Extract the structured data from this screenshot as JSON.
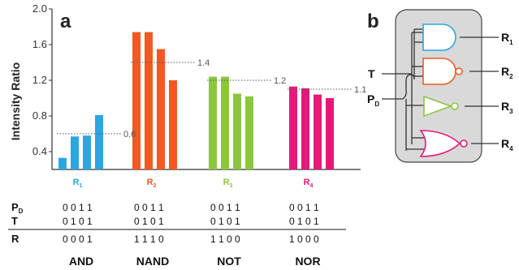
{
  "panel_a": {
    "letter": "a"
  },
  "panel_b": {
    "letter": "b"
  },
  "chart_data": {
    "type": "bar",
    "title": "",
    "xlabel": "",
    "ylabel": "Intensity Ratio",
    "ylim": [
      0.2,
      2.0
    ],
    "yticks": [
      "0.4",
      "0.8",
      "1.2",
      "1.6",
      "2.0"
    ],
    "grid": false,
    "groups": [
      {
        "name": "R",
        "sub": "1",
        "color": "#2aa7e0",
        "values": [
          0.33,
          0.57,
          0.58,
          0.81
        ],
        "threshold": 0.6,
        "threshold_label": "0.6"
      },
      {
        "name": "R",
        "sub": "2",
        "color": "#f05a22",
        "values": [
          1.74,
          1.74,
          1.55,
          1.2
        ],
        "threshold": 1.4,
        "threshold_label": "1.4"
      },
      {
        "name": "R",
        "sub": "3",
        "color": "#8cc63f",
        "values": [
          1.24,
          1.24,
          1.05,
          1.02
        ],
        "threshold": 1.2,
        "threshold_label": "1.2"
      },
      {
        "name": "R",
        "sub": "4",
        "color": "#e5197a",
        "values": [
          1.13,
          1.11,
          1.04,
          1.0
        ],
        "threshold": 1.1,
        "threshold_label": "1.1"
      }
    ]
  },
  "truth_table": {
    "row_labels": {
      "pd_main": "P",
      "pd_sub": "D",
      "t": "T",
      "r": "R"
    },
    "columns": [
      {
        "pd": "0 0 1 1",
        "t": "0 1 0 1",
        "r": "0 0 0 1",
        "t_muted": false,
        "gate": "AND"
      },
      {
        "pd": "0 0 1 1",
        "t": "0 1 0 1",
        "r": "1 1 1 0",
        "t_muted": false,
        "gate": "NAND"
      },
      {
        "pd": "0 0 1 1",
        "t": "0 1 0 1",
        "r": "1 1 0 0",
        "t_muted": true,
        "gate": "NOT"
      },
      {
        "pd": "0 0 1 1",
        "t": "0 1 0 1",
        "r": "1 0 0 0",
        "t_muted": false,
        "gate": "NOR"
      }
    ]
  },
  "diagram": {
    "input_t": "T",
    "input_pd_main": "P",
    "input_pd_sub": "D",
    "outputs": [
      {
        "main": "R",
        "sub": "1"
      },
      {
        "main": "R",
        "sub": "2"
      },
      {
        "main": "R",
        "sub": "3"
      },
      {
        "main": "R",
        "sub": "4"
      }
    ],
    "gate_colors": [
      "#2aa7e0",
      "#f05a22",
      "#8cc63f",
      "#e5197a"
    ],
    "box_fill": "#d9d9d9"
  }
}
